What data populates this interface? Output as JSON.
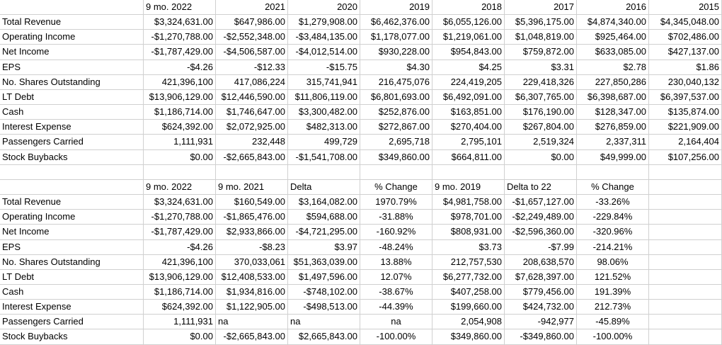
{
  "colors": {
    "background": "#ffffff",
    "gridline": "#d0d0d0",
    "text": "#000000"
  },
  "tables": [
    {
      "name": "annual-financials",
      "columns": [
        "",
        "9 mo. 2022",
        "2021",
        "2020",
        "2019",
        "2018",
        "2017",
        "2016",
        "2015"
      ],
      "rows": [
        {
          "label": "Total Revenue",
          "values": [
            "$3,324,631.00",
            "$647,986.00",
            "$1,279,908.00",
            "$6,462,376.00",
            "$6,055,126.00",
            "$5,396,175.00",
            "$4,874,340.00",
            "$4,345,048.00"
          ]
        },
        {
          "label": "Operating Income",
          "values": [
            "-$1,270,788.00",
            "-$2,552,348.00",
            "-$3,484,135.00",
            "$1,178,077.00",
            "$1,219,061.00",
            "$1,048,819.00",
            "$925,464.00",
            "$702,486.00"
          ]
        },
        {
          "label": "Net Income",
          "values": [
            "-$1,787,429.00",
            "-$4,506,587.00",
            "-$4,012,514.00",
            "$930,228.00",
            "$954,843.00",
            "$759,872.00",
            "$633,085.00",
            "$427,137.00"
          ]
        },
        {
          "label": "EPS",
          "values": [
            "-$4.26",
            "-$12.33",
            "-$15.75",
            "$4.30",
            "$4.25",
            "$3.31",
            "$2.78",
            "$1.86"
          ]
        },
        {
          "label": "No. Shares Outstanding",
          "values": [
            "421,396,100",
            "417,086,224",
            "315,741,941",
            "216,475,076",
            "224,419,205",
            "229,418,326",
            "227,850,286",
            "230,040,132"
          ]
        },
        {
          "label": "LT Debt",
          "values": [
            "$13,906,129.00",
            "$12,446,590.00",
            "$11,806,119.00",
            "$6,801,693.00",
            "$6,492,091.00",
            "$6,307,765.00",
            "$6,398,687.00",
            "$6,397,537.00"
          ]
        },
        {
          "label": "Cash",
          "values": [
            "$1,186,714.00",
            "$1,746,647.00",
            "$3,300,482.00",
            "$252,876.00",
            "$163,851.00",
            "$176,190.00",
            "$128,347.00",
            "$135,874.00"
          ]
        },
        {
          "label": "Interest Expense",
          "values": [
            "$624,392.00",
            "$2,072,925.00",
            "$482,313.00",
            "$272,867.00",
            "$270,404.00",
            "$267,804.00",
            "$276,859.00",
            "$221,909.00"
          ]
        },
        {
          "label": "Passengers Carried",
          "values": [
            "1,111,931",
            "232,448",
            "499,729",
            "2,695,718",
            "2,795,101",
            "2,519,324",
            "2,337,311",
            "2,164,404"
          ]
        },
        {
          "label": "Stock Buybacks",
          "values": [
            "$0.00",
            "-$2,665,843.00",
            "-$1,541,708.00",
            "$349,860.00",
            "$664,811.00",
            "$0.00",
            "$49,999.00",
            "$107,256.00"
          ]
        }
      ]
    },
    {
      "name": "nine-month-comparison",
      "columns": [
        "",
        "9 mo. 2022",
        "9 mo. 2021",
        "Delta",
        "% Change",
        "9 mo. 2019",
        "Delta to 22",
        "% Change",
        ""
      ],
      "rows": [
        {
          "label": "Total Revenue",
          "values": [
            "$3,324,631.00",
            "$160,549.00",
            "$3,164,082.00",
            "1970.79%",
            "$4,981,758.00",
            "-$1,657,127.00",
            "-33.26%",
            ""
          ]
        },
        {
          "label": "Operating Income",
          "values": [
            "-$1,270,788.00",
            "-$1,865,476.00",
            "$594,688.00",
            "-31.88%",
            "$978,701.00",
            "-$2,249,489.00",
            "-229.84%",
            ""
          ]
        },
        {
          "label": "Net Income",
          "values": [
            "-$1,787,429.00",
            "$2,933,866.00",
            "-$4,721,295.00",
            "-160.92%",
            "$808,931.00",
            "-$2,596,360.00",
            "-320.96%",
            ""
          ]
        },
        {
          "label": "EPS",
          "values": [
            "-$4.26",
            "-$8.23",
            "$3.97",
            "-48.24%",
            "$3.73",
            "-$7.99",
            "-214.21%",
            ""
          ]
        },
        {
          "label": "No. Shares Outstanding",
          "values": [
            "421,396,100",
            "370,033,061",
            "$51,363,039.00",
            "13.88%",
            "212,757,530",
            "208,638,570",
            "98.06%",
            ""
          ]
        },
        {
          "label": "LT Debt",
          "values": [
            "$13,906,129.00",
            "$12,408,533.00",
            "$1,497,596.00",
            "12.07%",
            "$6,277,732.00",
            "$7,628,397.00",
            "121.52%",
            ""
          ]
        },
        {
          "label": "Cash",
          "values": [
            "$1,186,714.00",
            "$1,934,816.00",
            "-$748,102.00",
            "-38.67%",
            "$407,258.00",
            "$779,456.00",
            "191.39%",
            ""
          ]
        },
        {
          "label": "Interest Expense",
          "values": [
            "$624,392.00",
            "$1,122,905.00",
            "-$498,513.00",
            "-44.39%",
            "$199,660.00",
            "$424,732.00",
            "212.73%",
            ""
          ]
        },
        {
          "label": "Passengers Carried",
          "values": [
            "1,111,931",
            "na",
            "na",
            "na",
            "2,054,908",
            "-942,977",
            "-45.89%",
            ""
          ]
        },
        {
          "label": "Stock Buybacks",
          "values": [
            "$0.00",
            "-$2,665,843.00",
            "$2,665,843.00",
            "-100.00%",
            "$349,860.00",
            "-$349,860.00",
            "-100.00%",
            ""
          ]
        }
      ]
    }
  ]
}
